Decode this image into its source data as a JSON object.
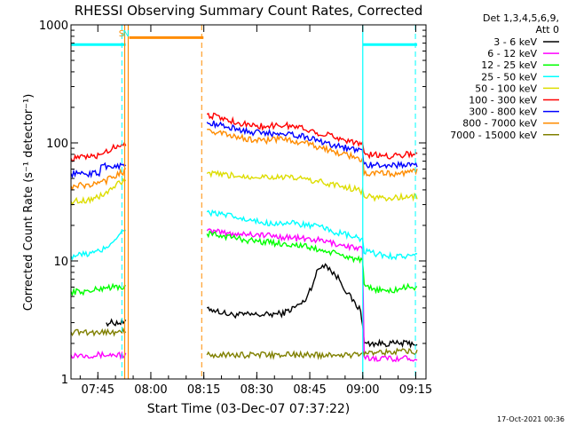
{
  "chart_data": {
    "type": "line",
    "title": "RHESSI Observing Summary Count Rates, Corrected",
    "xlabel": "Start Time (03-Dec-07 07:37:22)",
    "ylabel": "Corrected Count Rate (s⁻¹ detector⁻¹)",
    "x_unit": "minutes since 07:37:22",
    "xlim": [
      0,
      100.5
    ],
    "ylim": [
      1,
      1000
    ],
    "yscale": "log",
    "x_ticks": [
      {
        "x": 7.6,
        "label": "07:45"
      },
      {
        "x": 22.6,
        "label": "08:00"
      },
      {
        "x": 37.6,
        "label": "08:15"
      },
      {
        "x": 52.6,
        "label": "08:30"
      },
      {
        "x": 67.6,
        "label": "08:45"
      },
      {
        "x": 82.6,
        "label": "09:00"
      },
      {
        "x": 97.6,
        "label": "09:15"
      }
    ],
    "y_ticks": [
      {
        "y": 1,
        "label": "1"
      },
      {
        "y": 10,
        "label": "10"
      },
      {
        "y": 100,
        "label": "100"
      },
      {
        "y": 1000,
        "label": "1000"
      }
    ],
    "legend_header": [
      "Det 1,3,4,5,6,9,",
      "Att 0"
    ],
    "legend_position": "right",
    "series": [
      {
        "name": "3 - 6 keV",
        "color": "#000000",
        "x": [
          0,
          10,
          15.5,
          38.5,
          45,
          50,
          55,
          60,
          63,
          66,
          68,
          70,
          72,
          74,
          76,
          78,
          80,
          82,
          82.5,
          83,
          85,
          90,
          95,
          98
        ],
        "y": [
          3,
          3,
          3,
          4,
          3.5,
          3.5,
          3.5,
          3.6,
          4,
          4.5,
          6,
          8.5,
          9.5,
          8,
          7,
          5.5,
          4.5,
          3.8,
          3,
          2,
          2,
          2,
          2,
          2
        ]
      },
      {
        "name": "6 - 12 keV",
        "color": "#ff00ff",
        "x": [
          0,
          5,
          10,
          15.5,
          38.5,
          45,
          50,
          55,
          60,
          65,
          70,
          75,
          80,
          82.5,
          83,
          90,
          95,
          98
        ],
        "y": [
          1.6,
          1.6,
          1.6,
          1.6,
          18,
          17,
          17,
          16.5,
          16,
          15.5,
          15,
          14,
          13,
          12.5,
          1.5,
          1.5,
          1.5,
          1.5
        ]
      },
      {
        "name": "12 - 25 keV",
        "color": "#00ff00",
        "x": [
          0,
          5,
          10,
          15.5,
          38.5,
          45,
          50,
          55,
          60,
          65,
          70,
          75,
          80,
          82.5,
          83,
          90,
          95,
          98
        ],
        "y": [
          5.5,
          5.5,
          6,
          6,
          17,
          16,
          15,
          14.5,
          14,
          13.5,
          12.5,
          11.5,
          10.5,
          10,
          6,
          5.5,
          6,
          6
        ]
      },
      {
        "name": "25 - 50 keV",
        "color": "#00ffff",
        "x": [
          0,
          5,
          8,
          10,
          12,
          14,
          15.5,
          38.5,
          45,
          50,
          55,
          60,
          65,
          70,
          75,
          80,
          82.5,
          83,
          90,
          95,
          98
        ],
        "y": [
          11,
          11.5,
          12,
          13,
          15,
          17,
          19,
          26,
          24,
          22,
          21,
          21,
          20.5,
          19.5,
          17.5,
          16,
          15,
          12,
          11,
          11,
          11
        ]
      },
      {
        "name": "50 - 100 keV",
        "color": "#dddd00",
        "x": [
          0,
          5,
          8,
          10,
          12,
          14,
          15.5,
          38.5,
          45,
          50,
          55,
          60,
          65,
          70,
          75,
          80,
          82.5,
          83,
          90,
          95,
          98
        ],
        "y": [
          32,
          33,
          35,
          38,
          42,
          46,
          48,
          55,
          53,
          52,
          52,
          51,
          50,
          47,
          44,
          41,
          39,
          35,
          34,
          35,
          35
        ]
      },
      {
        "name": "100 - 300 keV",
        "color": "#ff0000",
        "x": [
          0,
          5,
          8,
          10,
          12,
          14,
          15.5,
          38.5,
          45,
          50,
          55,
          60,
          65,
          70,
          75,
          80,
          82.5,
          83,
          90,
          95,
          98
        ],
        "y": [
          74,
          76,
          78,
          85,
          92,
          96,
          100,
          175,
          155,
          142,
          138,
          142,
          135,
          122,
          112,
          102,
          98,
          80,
          78,
          80,
          82
        ]
      },
      {
        "name": "300 - 800 keV",
        "color": "#0000ff",
        "x": [
          0,
          8,
          8.5,
          10,
          12,
          14,
          15.5,
          38.5,
          45,
          50,
          55,
          60,
          65,
          70,
          75,
          80,
          82.5,
          83,
          90,
          95,
          98
        ],
        "y": [
          55,
          55,
          64,
          64,
          64,
          64,
          64,
          150,
          135,
          125,
          120,
          122,
          115,
          105,
          95,
          88,
          85,
          65,
          65,
          65,
          66
        ]
      },
      {
        "name": "800 - 7000 keV",
        "color": "#ff8c00",
        "x": [
          0,
          5,
          8,
          10,
          12,
          14,
          15.5,
          38.5,
          45,
          50,
          55,
          60,
          65,
          70,
          75,
          80,
          82.5,
          83,
          90,
          95,
          98
        ],
        "y": [
          43,
          44,
          45,
          48,
          52,
          56,
          58,
          130,
          115,
          108,
          105,
          108,
          102,
          92,
          84,
          76,
          72,
          55,
          55,
          56,
          57
        ]
      },
      {
        "name": "7000 - 15000 keV",
        "color": "#808000",
        "x": [
          0,
          5,
          10,
          15.5,
          38.5,
          45,
          50,
          55,
          60,
          65,
          70,
          75,
          80,
          82.5,
          83,
          90,
          95,
          98
        ],
        "y": [
          2.5,
          2.5,
          2.5,
          2.5,
          1.6,
          1.6,
          1.6,
          1.6,
          1.6,
          1.6,
          1.6,
          1.6,
          1.6,
          1.6,
          1.7,
          1.7,
          1.7,
          1.7
        ]
      }
    ],
    "attenuator_segments": [
      {
        "color": "#00ffff",
        "x": [
          0,
          15.5
        ],
        "y": 680
      },
      {
        "color": "#ff8c00",
        "x": [
          16.5,
          37.5
        ],
        "y": 780
      },
      {
        "color": "#00ffff",
        "x": [
          82.6,
          98
        ],
        "y": 680
      }
    ],
    "solid_markers": [
      {
        "x": 15.2,
        "color": "#ff8c00"
      },
      {
        "x": 16.2,
        "color": "#ff8c00"
      },
      {
        "x": 82.6,
        "color": "#00ffff"
      }
    ],
    "dashed_markers": [
      {
        "x": 14.4,
        "color": "#00ffff"
      },
      {
        "x": 37.0,
        "color": "#ff8c00"
      },
      {
        "x": 97.5,
        "color": "#00ffff"
      }
    ],
    "flag_labels": [
      {
        "x": 14.3,
        "text": "S",
        "color": "#ff8c00"
      },
      {
        "x": 15.6,
        "text": "N",
        "color": "#00ffff"
      }
    ],
    "footer_timestamp": "17-Oct-2021 00:36"
  }
}
